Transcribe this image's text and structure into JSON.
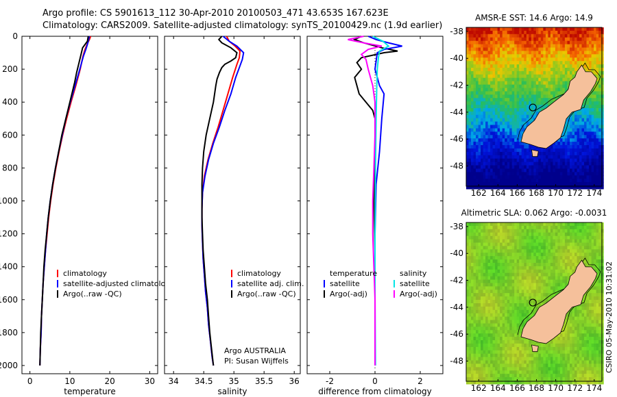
{
  "title": {
    "line1": "Argo profile: CS 5901613_112 30-Apr-2010 20100503_471 43.653S 167.623E",
    "line2": "Climatology: CARS2009. Satellite-adjusted climatology: synTS_20100429.nc (1.9d earlier)"
  },
  "credit": {
    "line1": "Argo AUSTRALIA",
    "line2": "PI: Susan Wijffels"
  },
  "stamp": "CSIRO 05-May-2010 10:31:02",
  "colors": {
    "red": "#ff0000",
    "blue": "#0000ff",
    "black": "#000000",
    "cyan": "#00e5e5",
    "magenta": "#ff00ff"
  },
  "chart_data": [
    {
      "type": "line",
      "xlabel": "temperature",
      "xlim": [
        -2,
        32
      ],
      "xticks": [
        0,
        10,
        20,
        30
      ],
      "ylim": [
        0,
        2050
      ],
      "yticks": [
        0,
        200,
        400,
        600,
        800,
        1000,
        1200,
        1400,
        1600,
        1800,
        2000
      ],
      "ydir": "reverse",
      "legend": [
        "climatology",
        "satellite-adjusted climatology",
        "Argo(..raw -QC)"
      ],
      "series": [
        {
          "name": "climatology",
          "color": "red",
          "points": [
            [
              15.2,
              0
            ],
            [
              14.9,
              20
            ],
            [
              14.3,
              50
            ],
            [
              13.8,
              80
            ],
            [
              13.3,
              120
            ],
            [
              12.6,
              200
            ],
            [
              11.5,
              300
            ],
            [
              10.3,
              400
            ],
            [
              9.2,
              500
            ],
            [
              8.2,
              600
            ],
            [
              7.3,
              700
            ],
            [
              6.5,
              800
            ],
            [
              5.8,
              900
            ],
            [
              5.2,
              1000
            ],
            [
              4.7,
              1100
            ],
            [
              4.3,
              1200
            ],
            [
              3.9,
              1300
            ],
            [
              3.6,
              1400
            ],
            [
              3.3,
              1500
            ],
            [
              3.1,
              1600
            ],
            [
              2.9,
              1700
            ],
            [
              2.8,
              1800
            ],
            [
              2.6,
              1900
            ],
            [
              2.5,
              2000
            ]
          ]
        },
        {
          "name": "satellite-adjusted climatology",
          "color": "blue",
          "points": [
            [
              14.9,
              0
            ],
            [
              14.7,
              20
            ],
            [
              14.4,
              50
            ],
            [
              14.0,
              80
            ],
            [
              13.4,
              120
            ],
            [
              12.5,
              200
            ],
            [
              11.3,
              300
            ],
            [
              10.1,
              400
            ],
            [
              9.0,
              500
            ],
            [
              8.1,
              600
            ],
            [
              7.2,
              700
            ],
            [
              6.4,
              800
            ],
            [
              5.7,
              900
            ],
            [
              5.1,
              1000
            ],
            [
              4.6,
              1100
            ],
            [
              4.2,
              1200
            ],
            [
              3.9,
              1300
            ],
            [
              3.6,
              1400
            ],
            [
              3.3,
              1500
            ],
            [
              3.1,
              1600
            ],
            [
              2.9,
              1700
            ],
            [
              2.8,
              1800
            ],
            [
              2.6,
              1900
            ],
            [
              2.5,
              2000
            ]
          ]
        },
        {
          "name": "Argo(..raw -QC)",
          "color": "black",
          "points": [
            [
              14.6,
              0
            ],
            [
              14.4,
              30
            ],
            [
              13.2,
              70
            ],
            [
              12.8,
              110
            ],
            [
              12.3,
              160
            ],
            [
              11.7,
              220
            ],
            [
              11.2,
              280
            ],
            [
              10.6,
              340
            ],
            [
              10.0,
              400
            ],
            [
              9.0,
              500
            ],
            [
              8.0,
              600
            ],
            [
              7.2,
              700
            ],
            [
              6.4,
              800
            ],
            [
              5.7,
              900
            ],
            [
              5.1,
              1000
            ],
            [
              4.6,
              1100
            ],
            [
              4.2,
              1200
            ],
            [
              3.8,
              1300
            ],
            [
              3.5,
              1400
            ],
            [
              3.3,
              1500
            ],
            [
              3.1,
              1600
            ],
            [
              2.9,
              1700
            ],
            [
              2.7,
              1800
            ],
            [
              2.6,
              1900
            ],
            [
              2.5,
              2000
            ]
          ]
        }
      ]
    },
    {
      "type": "line",
      "xlabel": "salinity",
      "xlim": [
        33.85,
        36.1
      ],
      "xticks": [
        34,
        34.5,
        35,
        35.5,
        36
      ],
      "ylim": [
        0,
        2050
      ],
      "ydir": "reverse",
      "legend": [
        "climatology",
        "satellite adj. clim.",
        "Argo(..raw -QC)"
      ],
      "series": [
        {
          "name": "climatology",
          "color": "red",
          "points": [
            [
              34.88,
              0
            ],
            [
              34.92,
              30
            ],
            [
              35.02,
              60
            ],
            [
              35.1,
              90
            ],
            [
              35.09,
              130
            ],
            [
              35.05,
              170
            ],
            [
              34.98,
              250
            ],
            [
              34.9,
              350
            ],
            [
              34.82,
              450
            ],
            [
              34.74,
              550
            ],
            [
              34.65,
              650
            ],
            [
              34.57,
              750
            ],
            [
              34.51,
              850
            ],
            [
              34.48,
              950
            ],
            [
              34.47,
              1050
            ],
            [
              34.47,
              1150
            ],
            [
              34.48,
              1250
            ],
            [
              34.49,
              1350
            ],
            [
              34.51,
              1450
            ],
            [
              34.53,
              1550
            ],
            [
              34.56,
              1650
            ],
            [
              34.58,
              1750
            ],
            [
              34.61,
              1850
            ],
            [
              34.64,
              1950
            ],
            [
              34.66,
              2000
            ]
          ]
        },
        {
          "name": "satellite adj. clim.",
          "color": "blue",
          "points": [
            [
              34.82,
              0
            ],
            [
              34.92,
              30
            ],
            [
              35.05,
              60
            ],
            [
              35.16,
              100
            ],
            [
              35.14,
              140
            ],
            [
              35.1,
              180
            ],
            [
              35.03,
              250
            ],
            [
              34.95,
              350
            ],
            [
              34.85,
              450
            ],
            [
              34.76,
              550
            ],
            [
              34.66,
              650
            ],
            [
              34.58,
              750
            ],
            [
              34.52,
              850
            ],
            [
              34.48,
              950
            ],
            [
              34.47,
              1050
            ],
            [
              34.47,
              1150
            ],
            [
              34.48,
              1250
            ],
            [
              34.49,
              1350
            ],
            [
              34.51,
              1450
            ],
            [
              34.53,
              1550
            ],
            [
              34.56,
              1650
            ],
            [
              34.58,
              1750
            ],
            [
              34.61,
              1850
            ],
            [
              34.64,
              1950
            ],
            [
              34.66,
              2000
            ]
          ]
        },
        {
          "name": "Argo(..raw -QC)",
          "color": "black",
          "points": [
            [
              34.8,
              0
            ],
            [
              34.75,
              20
            ],
            [
              34.8,
              40
            ],
            [
              34.95,
              70
            ],
            [
              35.05,
              100
            ],
            [
              35.03,
              130
            ],
            [
              34.95,
              150
            ],
            [
              34.85,
              170
            ],
            [
              34.8,
              190
            ],
            [
              34.76,
              220
            ],
            [
              34.72,
              260
            ],
            [
              34.7,
              300
            ],
            [
              34.66,
              400
            ],
            [
              34.6,
              500
            ],
            [
              34.54,
              600
            ],
            [
              34.5,
              700
            ],
            [
              34.48,
              800
            ],
            [
              34.47,
              900
            ],
            [
              34.47,
              1000
            ],
            [
              34.47,
              1100
            ],
            [
              34.48,
              1200
            ],
            [
              34.49,
              1300
            ],
            [
              34.51,
              1400
            ],
            [
              34.53,
              1500
            ],
            [
              34.56,
              1600
            ],
            [
              34.58,
              1700
            ],
            [
              34.6,
              1800
            ],
            [
              34.63,
              1900
            ],
            [
              34.66,
              2000
            ]
          ]
        }
      ]
    },
    {
      "type": "line",
      "xlabel": "difference from climatology",
      "xlim": [
        -3,
        3
      ],
      "xticks": [
        -2,
        0,
        2
      ],
      "ylim": [
        0,
        2050
      ],
      "ydir": "reverse",
      "legend_groups": [
        {
          "title": "temperature",
          "entries": [
            "satellite",
            "Argo(-adj)"
          ]
        },
        {
          "title": "salinity",
          "entries": [
            "satellite",
            "Argo(-adj)"
          ]
        }
      ],
      "series": [
        {
          "name": "temperature satellite",
          "color": "blue",
          "points": [
            [
              -0.3,
              0
            ],
            [
              0.05,
              20
            ],
            [
              0.6,
              40
            ],
            [
              1.2,
              60
            ],
            [
              0.4,
              80
            ],
            [
              0.1,
              100
            ],
            [
              0.0,
              200
            ],
            [
              0.1,
              250
            ],
            [
              0.2,
              300
            ],
            [
              0.4,
              350
            ],
            [
              0.3,
              500
            ],
            [
              0.2,
              700
            ],
            [
              0.05,
              900
            ],
            [
              0.0,
              1200
            ],
            [
              0.0,
              1600
            ],
            [
              0.0,
              2000
            ]
          ]
        },
        {
          "name": "temperature Argo(-adj)",
          "color": "black",
          "points": [
            [
              -0.6,
              0
            ],
            [
              -0.9,
              20
            ],
            [
              -0.5,
              40
            ],
            [
              0.3,
              70
            ],
            [
              1.0,
              90
            ],
            [
              0.4,
              100
            ],
            [
              -0.6,
              130
            ],
            [
              -0.8,
              160
            ],
            [
              -0.6,
              200
            ],
            [
              -0.9,
              250
            ],
            [
              -0.8,
              300
            ],
            [
              -0.7,
              350
            ],
            [
              -0.4,
              400
            ],
            [
              -0.1,
              450
            ],
            [
              0.0,
              500
            ],
            [
              0.0,
              800
            ],
            [
              -0.05,
              1000
            ],
            [
              0.0,
              1300
            ],
            [
              0.0,
              2000
            ]
          ]
        },
        {
          "name": "salinity satellite",
          "color": "cyan",
          "points": [
            [
              -0.1,
              0
            ],
            [
              0.35,
              30
            ],
            [
              0.6,
              60
            ],
            [
              0.2,
              90
            ],
            [
              0.15,
              130
            ],
            [
              0.1,
              200
            ],
            [
              0.08,
              300
            ],
            [
              0.05,
              500
            ],
            [
              0.02,
              800
            ],
            [
              0.0,
              1200
            ],
            [
              0.0,
              1600
            ],
            [
              0.02,
              2000
            ]
          ]
        },
        {
          "name": "salinity Argo(-adj)",
          "color": "magenta",
          "points": [
            [
              -0.5,
              0
            ],
            [
              -1.2,
              20
            ],
            [
              -0.5,
              40
            ],
            [
              0.3,
              60
            ],
            [
              -0.3,
              80
            ],
            [
              -0.6,
              110
            ],
            [
              -0.4,
              140
            ],
            [
              -0.3,
              200
            ],
            [
              -0.1,
              300
            ],
            [
              0.0,
              400
            ],
            [
              0.0,
              600
            ],
            [
              -0.05,
              800
            ],
            [
              -0.1,
              1000
            ],
            [
              -0.1,
              1200
            ],
            [
              -0.05,
              1400
            ],
            [
              0.0,
              1600
            ],
            [
              0.0,
              2000
            ]
          ]
        }
      ]
    },
    {
      "type": "heatmap",
      "title": "AMSR-E SST: 14.6 Argo: 14.9",
      "xlim": [
        160.7,
        174.8
      ],
      "ylim": [
        -49.5,
        -37.7
      ],
      "xticks": [
        162,
        164,
        166,
        168,
        170,
        172,
        174
      ],
      "yticks": [
        -38,
        -40,
        -42,
        -44,
        -46,
        -48
      ],
      "marker": {
        "lon": 167.623,
        "lat": -43.653
      }
    },
    {
      "type": "heatmap",
      "title": "Altimetric SLA: 0.062 Argo: -0.0031",
      "xlim": [
        160.7,
        174.8
      ],
      "ylim": [
        -49.5,
        -37.7
      ],
      "xticks": [
        162,
        164,
        166,
        168,
        170,
        172,
        174
      ],
      "yticks": [
        -38,
        -40,
        -42,
        -44,
        -46,
        -48
      ],
      "marker": {
        "lon": 167.623,
        "lat": -43.653
      }
    }
  ]
}
